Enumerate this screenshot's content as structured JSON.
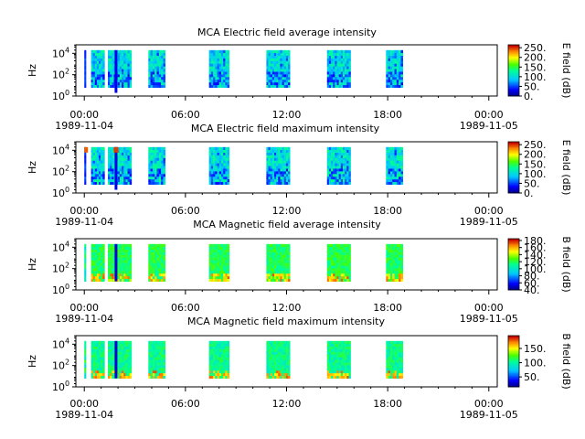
{
  "chart_data": [
    {
      "type": "heatmap",
      "title": "MCA  Electric field average intensity",
      "ylabel": "Hz",
      "xlabel": "",
      "ytick_labels": [
        [
          "10",
          "0"
        ],
        [
          "10",
          "2"
        ],
        [
          "10",
          "4"
        ]
      ],
      "xticks": [
        {
          "time": "00:00",
          "date": "1989-11-04"
        },
        {
          "time": "06:00",
          "date": ""
        },
        {
          "time": "12:00",
          "date": ""
        },
        {
          "time": "18:00",
          "date": ""
        },
        {
          "time": "00:00",
          "date": "1989-11-05"
        }
      ],
      "xlim_hours": [
        -0.5,
        24.5
      ],
      "ylim_log10_hz": [
        0,
        4.8
      ],
      "colorbar": {
        "label": "E field (dB)",
        "ticks": [
          "0.",
          "50.",
          "100.",
          "150.",
          "200.",
          "250."
        ],
        "min": 0,
        "max": 265
      },
      "data_intervals_hours": [
        [
          0.0,
          0.1
        ],
        [
          0.4,
          1.2
        ],
        [
          1.4,
          2.8
        ],
        [
          3.8,
          4.8
        ],
        [
          7.4,
          8.6
        ],
        [
          10.8,
          12.2
        ],
        [
          14.4,
          15.8
        ],
        [
          17.9,
          18.9
        ]
      ],
      "dominant_level": "~100 dB (cyan/green), low-frequency dips ~20-50 dB"
    },
    {
      "type": "heatmap",
      "title": "MCA  Electric field maximum intensity",
      "ylabel": "Hz",
      "xlabel": "",
      "ytick_labels": [
        [
          "10",
          "0"
        ],
        [
          "10",
          "2"
        ],
        [
          "10",
          "4"
        ]
      ],
      "xticks": [
        {
          "time": "00:00",
          "date": "1989-11-04"
        },
        {
          "time": "06:00",
          "date": ""
        },
        {
          "time": "12:00",
          "date": ""
        },
        {
          "time": "18:00",
          "date": ""
        },
        {
          "time": "00:00",
          "date": "1989-11-05"
        }
      ],
      "xlim_hours": [
        -0.5,
        24.5
      ],
      "ylim_log10_hz": [
        0,
        4.8
      ],
      "colorbar": {
        "label": "E field (dB)",
        "ticks": [
          "0.",
          "50.",
          "100.",
          "150.",
          "200.",
          "250."
        ],
        "min": 0,
        "max": 265
      },
      "data_intervals_hours": [
        [
          0.0,
          0.1
        ],
        [
          0.4,
          1.2
        ],
        [
          1.4,
          2.8
        ],
        [
          3.8,
          4.8
        ],
        [
          7.4,
          8.6
        ],
        [
          10.8,
          12.2
        ],
        [
          14.4,
          15.8
        ],
        [
          17.9,
          18.9
        ]
      ],
      "dominant_level": "~100 dB (cyan/green), red spikes ~250 dB near 00:00 and 01:50"
    },
    {
      "type": "heatmap",
      "title": "MCA  Magnetic field average intensity",
      "ylabel": "Hz",
      "xlabel": "",
      "ytick_labels": [
        [
          "10",
          "0"
        ],
        [
          "10",
          "2"
        ],
        [
          "10",
          "4"
        ]
      ],
      "xticks": [
        {
          "time": "00:00",
          "date": "1989-11-04"
        },
        {
          "time": "06:00",
          "date": ""
        },
        {
          "time": "12:00",
          "date": ""
        },
        {
          "time": "18:00",
          "date": ""
        },
        {
          "time": "00:00",
          "date": "1989-11-05"
        }
      ],
      "xlim_hours": [
        -0.5,
        24.5
      ],
      "ylim_log10_hz": [
        0,
        4.8
      ],
      "colorbar": {
        "label": "B field (dB)",
        "ticks": [
          "40.",
          "60.",
          "80.",
          "100.",
          "120.",
          "140.",
          "160.",
          "180."
        ],
        "min": 40,
        "max": 185
      },
      "data_intervals_hours": [
        [
          0.0,
          0.1
        ],
        [
          0.4,
          1.2
        ],
        [
          1.4,
          2.8
        ],
        [
          3.8,
          4.8
        ],
        [
          7.4,
          8.6
        ],
        [
          10.8,
          12.2
        ],
        [
          14.4,
          15.8
        ],
        [
          17.9,
          18.9
        ]
      ],
      "dominant_level": "~120 dB (green), higher ~150-170 dB at low frequencies"
    },
    {
      "type": "heatmap",
      "title": "MCA  Magnetic field maximum intensity",
      "ylabel": "Hz",
      "xlabel": "",
      "ytick_labels": [
        [
          "10",
          "0"
        ],
        [
          "10",
          "2"
        ],
        [
          "10",
          "4"
        ]
      ],
      "xticks": [
        {
          "time": "00:00",
          "date": "1989-11-04"
        },
        {
          "time": "06:00",
          "date": ""
        },
        {
          "time": "12:00",
          "date": ""
        },
        {
          "time": "18:00",
          "date": ""
        },
        {
          "time": "00:00",
          "date": "1989-11-05"
        }
      ],
      "xlim_hours": [
        -0.5,
        24.5
      ],
      "ylim_log10_hz": [
        0,
        4.8
      ],
      "colorbar": {
        "label": "B field (dB)",
        "ticks": [
          "50.",
          "100.",
          "150."
        ],
        "min": 15,
        "max": 195
      },
      "data_intervals_hours": [
        [
          0.0,
          0.1
        ],
        [
          0.4,
          1.2
        ],
        [
          1.4,
          2.8
        ],
        [
          3.8,
          4.8
        ],
        [
          7.4,
          8.6
        ],
        [
          10.8,
          12.2
        ],
        [
          14.4,
          15.8
        ],
        [
          17.9,
          18.9
        ]
      ],
      "dominant_level": "~110 dB (green), higher ~150-180 dB at low frequencies"
    }
  ]
}
